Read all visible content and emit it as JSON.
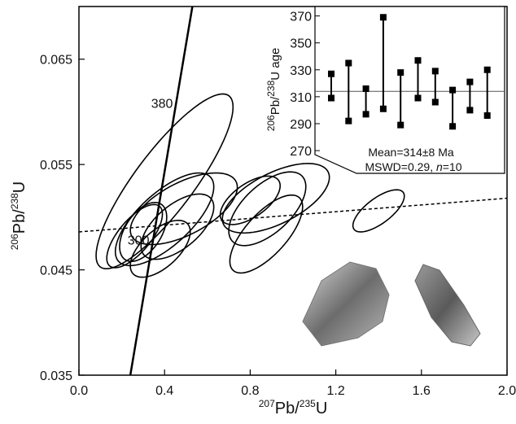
{
  "chart_data": [
    {
      "type": "ellipse",
      "x_label": [
        "207",
        "Pb/",
        "235",
        "U"
      ],
      "y_label": [
        "206",
        "Pb/",
        "238",
        "U"
      ],
      "xlim": [
        0,
        2.0
      ],
      "ylim": [
        0.035,
        0.07
      ],
      "xticks": [
        {
          "value": 0,
          "label": "0.0"
        },
        0.4,
        0.8,
        1.2,
        1.6,
        {
          "value": 2,
          "label": "2.0"
        }
      ],
      "yticks": [
        0.035,
        0.045,
        0.055,
        0.065
      ],
      "color": "#000000",
      "ellipses": {
        "x": [
          0.4,
          0.4,
          0.49,
          0.46,
          0.3,
          0.26,
          0.38,
          0.92,
          0.88,
          0.875,
          0.8,
          1.4
        ],
        "y": [
          0.0534,
          0.0498,
          0.0508,
          0.0491,
          0.0486,
          0.0482,
          0.047,
          0.0518,
          0.0508,
          0.0484,
          0.0516,
          0.0506
        ],
        "dx": [
          0.32,
          0.23,
          0.25,
          0.17,
          0.11,
          0.13,
          0.14,
          0.25,
          0.18,
          0.17,
          0.14,
          0.12
        ],
        "dy": [
          0.0083,
          0.0044,
          0.0034,
          0.0031,
          0.0028,
          0.003,
          0.0027,
          0.0033,
          0.0035,
          0.0037,
          0.0023,
          0.002
        ],
        "rho": [
          0.85,
          0.7,
          0.6,
          0.6,
          0.5,
          0.7,
          0.6,
          0.6,
          0.6,
          0.7,
          0.6,
          0.7
        ]
      },
      "concordia": {
        "x": [
          0.24,
          0.53
        ],
        "y": [
          0.035,
          0.07
        ],
        "labels": [
          300,
          380
        ],
        "label_x": [
          0.344,
          0.454
        ],
        "label_y": [
          0.0477,
          0.0607
        ]
      },
      "discordia": {
        "x": [
          0,
          2.0
        ],
        "y": [
          0.0486,
          0.0518
        ]
      }
    },
    {
      "type": "errorbar",
      "y_label": [
        "206",
        "Pb/",
        "238",
        "U age"
      ],
      "ylim": [
        264,
        377
      ],
      "yticks": [
        270,
        290,
        310,
        330,
        350,
        370
      ],
      "values": [
        318,
        313.5,
        306.5,
        335,
        308.5,
        323,
        317.5,
        301.5,
        310.5,
        313
      ],
      "errors": [
        9,
        21.5,
        9.5,
        34,
        19.5,
        14,
        11.5,
        13.5,
        10.5,
        17
      ],
      "mean": 314,
      "annotation_1": "Mean=314±8 Ma",
      "annotation_2": [
        "MSWD=0.29, ",
        "n",
        "=10"
      ]
    }
  ]
}
